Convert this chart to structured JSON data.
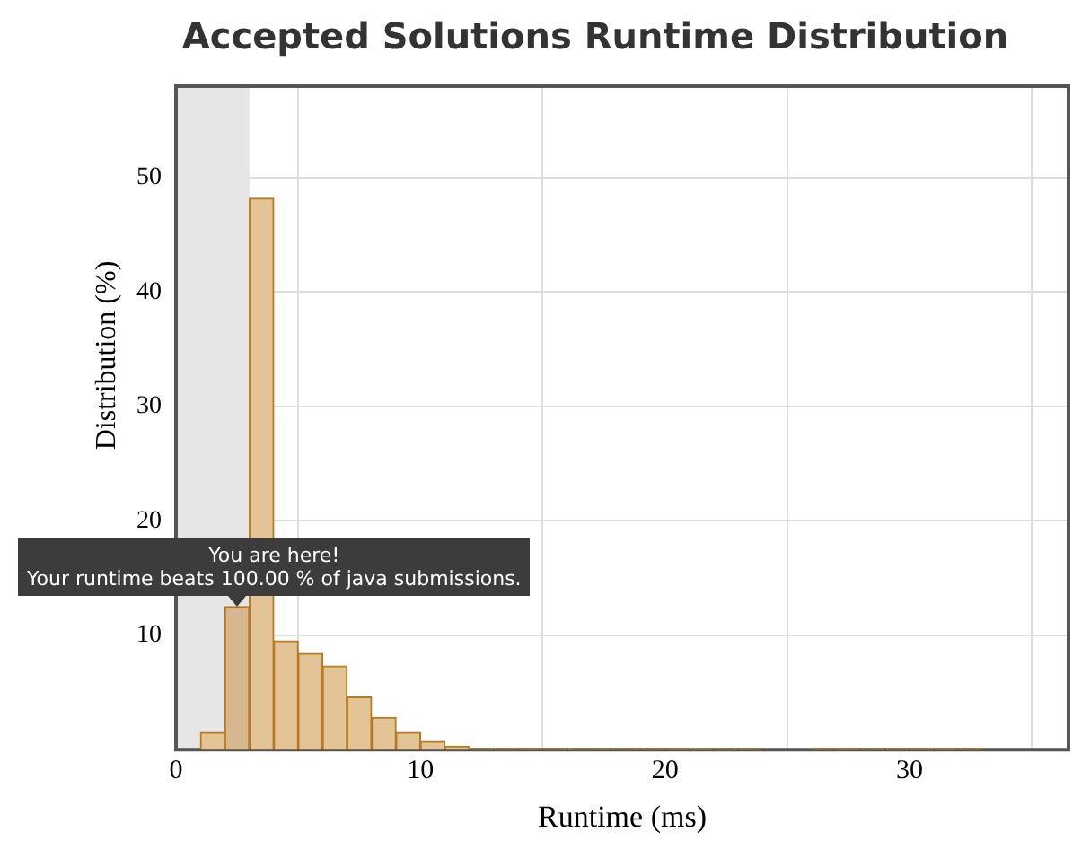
{
  "chart_data": {
    "type": "histogram",
    "title": "Accepted Solutions Runtime Distribution",
    "xlabel": "Runtime (ms)",
    "ylabel": "Distribution (%)",
    "bins": [
      1,
      2,
      3,
      4,
      5,
      6,
      7,
      8,
      9,
      10,
      11,
      12,
      13,
      14,
      15,
      16,
      17,
      18,
      19,
      20,
      21,
      22,
      23,
      24,
      25,
      26,
      27,
      28,
      29,
      30,
      31,
      32,
      33
    ],
    "values": [
      1.5,
      12.5,
      48.2,
      9.5,
      8.4,
      7.3,
      4.6,
      2.8,
      1.5,
      0.7,
      0.3,
      0.1,
      0.1,
      0.1,
      0.1,
      0.1,
      0.1,
      0.1,
      0.1,
      0.1,
      0.1,
      0.1,
      0.1,
      0,
      0,
      0.1,
      0.1,
      0.1,
      0.1,
      0.1,
      0.1,
      0.1
    ],
    "colors": [
      "#e3c497",
      "#d6b78f",
      "#e3c497",
      "#e3c497",
      "#e3c497",
      "#e3c497",
      "#e3c497",
      "#e3c497",
      "#e3c497",
      "#e3c497",
      "#e3c497",
      "#e3c497",
      "#e3c497",
      "#e3c497",
      "#e3c497",
      "#e3c497",
      "#e3c497",
      "#e3c497",
      "#e3c497",
      "#e3c497",
      "#e3c497",
      "#e3c497",
      "#e3c497",
      "#e3c497",
      "#e3c497",
      "#e3c497",
      "#e3c497",
      "#e3c497",
      "#e3c497",
      "#e3c497",
      "#e3c497",
      "#e3c497"
    ],
    "xlim": [
      0,
      36.5
    ],
    "ylim": [
      0,
      58
    ],
    "xticks": [
      0,
      10,
      20,
      30
    ],
    "yticks": [
      10,
      20,
      30,
      40,
      50
    ],
    "grid": true,
    "legend": false,
    "bands": [
      {
        "axis": "x",
        "from": 0,
        "to": 3,
        "color": "#e6e6e6"
      }
    ],
    "annotations": [
      {
        "text": "You are here!",
        "x": 2.5,
        "y": 12.5
      },
      {
        "text": "Your runtime beats 100.00 % of java submissions.",
        "x": 2.5,
        "y": 12.5
      }
    ]
  }
}
